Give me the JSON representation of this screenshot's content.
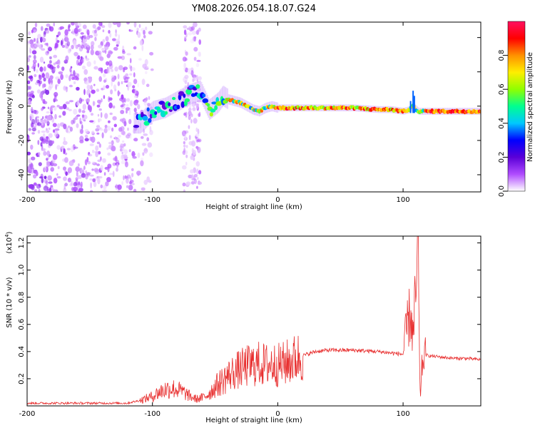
{
  "title": "YM08.2026.054.18.07.G24",
  "chart_data": [
    {
      "type": "heatmap",
      "xlabel": "Height of straight line (km)",
      "ylabel": "Frequency (Hz)",
      "xlim": [
        -200,
        162
      ],
      "ylim": [
        -50,
        49
      ],
      "xticks": [
        -200,
        -100,
        0,
        100
      ],
      "yticks": [
        -40,
        -20,
        0,
        20,
        40
      ],
      "colorbar": {
        "label": "Normalized spectral amplitude",
        "range": [
          0,
          1
        ],
        "ticks": [
          "0.0",
          "0.2",
          "0.4",
          "0.6",
          "0.8"
        ],
        "colors": [
          "#ffffff",
          "#b04cff",
          "#5a00d8",
          "#0000ff",
          "#00c8ff",
          "#00ff90",
          "#90ff00",
          "#ffee00",
          "#ff9000",
          "#ff0000",
          "#ff1060"
        ]
      },
      "trace": {
        "x": [
          -110,
          -100,
          -90,
          -80,
          -70,
          -62,
          -55,
          -48,
          -44,
          -40,
          -35,
          -30,
          -25,
          -20,
          -15,
          -10,
          -5,
          0,
          10,
          20,
          40,
          60,
          80,
          90,
          100,
          105,
          108,
          112,
          120,
          140,
          162
        ],
        "frequency_hz": [
          -10,
          -3,
          -1,
          3,
          7,
          9,
          -2,
          2,
          6,
          4,
          3,
          2,
          0,
          -2,
          -3,
          -1,
          0,
          -1,
          -1,
          -1,
          -1,
          -1,
          -2,
          -2,
          -3,
          -2,
          0,
          -3,
          -3,
          -3,
          -3
        ]
      }
    },
    {
      "type": "line",
      "xlabel": "Height of straight line (km)",
      "ylabel": "SNR (10 * v/v)",
      "yscale": "(x10",
      "yscale_exp": "4",
      "yscale_close": ")",
      "xlim": [
        -200,
        162
      ],
      "ylim": [
        0,
        1.25
      ],
      "xticks": [
        -200,
        -100,
        0,
        100
      ],
      "yticks": [
        "0.2",
        "0.4",
        "0.6",
        "0.8",
        "1.0",
        "1.2"
      ],
      "series_color": "#e83030",
      "series": [
        {
          "name": "SNR",
          "x": [
            -200,
            -180,
            -150,
            -120,
            -110,
            -100,
            -95,
            -90,
            -85,
            -80,
            -75,
            -70,
            -65,
            -60,
            -55,
            -50,
            -45,
            -40,
            -35,
            -30,
            -25,
            -20,
            -15,
            -10,
            -5,
            0,
            5,
            10,
            20,
            30,
            40,
            60,
            80,
            90,
            100,
            104,
            106,
            108,
            110,
            111,
            112,
            113,
            114,
            115,
            117,
            120,
            130,
            140,
            150,
            162
          ],
          "y": [
            0.02,
            0.02,
            0.02,
            0.02,
            0.04,
            0.07,
            0.1,
            0.12,
            0.13,
            0.12,
            0.1,
            0.07,
            0.05,
            0.06,
            0.09,
            0.14,
            0.18,
            0.22,
            0.25,
            0.27,
            0.29,
            0.3,
            0.31,
            0.3,
            0.31,
            0.3,
            0.31,
            0.33,
            0.37,
            0.4,
            0.41,
            0.41,
            0.4,
            0.39,
            0.38,
            0.62,
            0.69,
            0.48,
            0.83,
            0.88,
            1.25,
            0.3,
            0.07,
            0.28,
            0.38,
            0.37,
            0.36,
            0.35,
            0.35,
            0.34
          ]
        }
      ]
    }
  ]
}
